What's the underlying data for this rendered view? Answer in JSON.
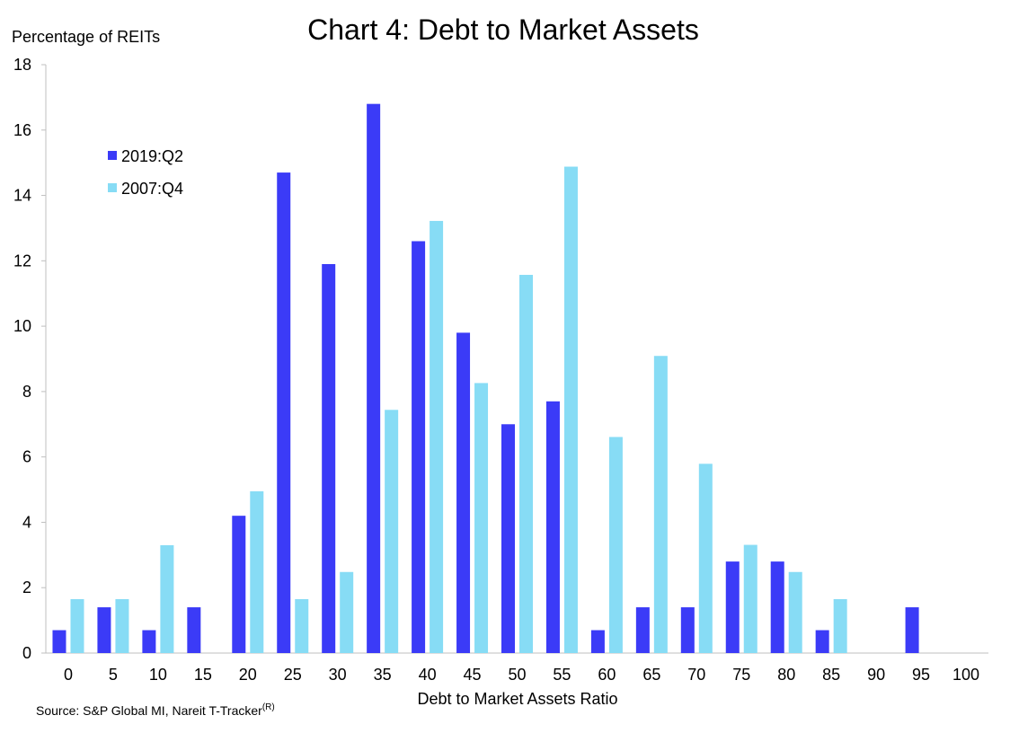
{
  "chart_data": {
    "type": "bar",
    "title": "Chart 4: Debt to Market Assets",
    "ylabel": "Percentage of REITs",
    "xlabel": "Debt to Market Assets Ratio",
    "source": "Source: S&P Global MI, Nareit T-Tracker",
    "source_superscript": "(R)",
    "categories": [
      "0",
      "5",
      "10",
      "15",
      "20",
      "25",
      "30",
      "35",
      "40",
      "45",
      "50",
      "55",
      "60",
      "65",
      "70",
      "75",
      "80",
      "85",
      "90",
      "95",
      "100"
    ],
    "ylim": [
      0,
      18
    ],
    "yticks": [
      0,
      2,
      4,
      6,
      8,
      10,
      12,
      14,
      16,
      18
    ],
    "grid": false,
    "legend_position": "top-left",
    "series": [
      {
        "name": "2019:Q2",
        "color": "#3b3bf7",
        "values": [
          0.7,
          1.4,
          0.7,
          1.4,
          4.2,
          14.7,
          11.9,
          16.8,
          12.6,
          9.8,
          7.0,
          7.7,
          0.7,
          1.4,
          1.4,
          2.8,
          2.8,
          0.7,
          0,
          1.4,
          0
        ]
      },
      {
        "name": "2007:Q4",
        "color": "#87dcf5",
        "values": [
          1.65,
          1.65,
          3.3,
          0,
          4.95,
          1.65,
          2.48,
          7.44,
          13.22,
          8.26,
          11.57,
          14.88,
          6.61,
          9.09,
          5.79,
          3.31,
          2.48,
          1.65,
          0,
          0,
          0
        ]
      }
    ]
  }
}
